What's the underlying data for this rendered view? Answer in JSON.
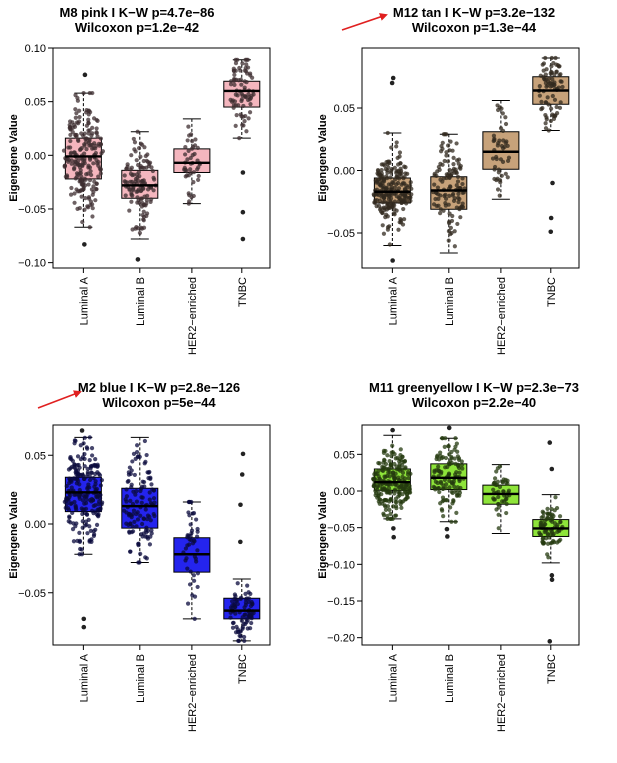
{
  "chart_data": [
    {
      "type": "box",
      "title": "M8 pink  I  K−W p=4.7e−86",
      "subtitle": "Wilcoxon p=1.2e−42",
      "ylabel": "Eigengene Value",
      "xlabel": "",
      "ylim": [
        -0.105,
        0.1
      ],
      "yticks": [
        "0.10",
        "0.05",
        "0.00",
        "−0.05",
        "−0.10"
      ],
      "ytick_values": [
        0.1,
        0.05,
        0.0,
        -0.05,
        -0.1
      ],
      "color": "#f4b6be",
      "annotated": false,
      "categories": [
        "Luminal A",
        "Luminal B",
        "HER2−enriched",
        "TNBC"
      ],
      "groups": [
        {
          "q1": -0.022,
          "median": -0.001,
          "q3": 0.016,
          "whisker_low": -0.067,
          "whisker_high": 0.058,
          "n": 220,
          "outliers": [
            0.075,
            -0.083
          ]
        },
        {
          "q1": -0.04,
          "median": -0.028,
          "q3": -0.014,
          "whisker_low": -0.078,
          "whisker_high": 0.022,
          "n": 120,
          "outliers": [
            -0.097
          ]
        },
        {
          "q1": -0.016,
          "median": -0.007,
          "q3": 0.006,
          "whisker_low": -0.045,
          "whisker_high": 0.034,
          "n": 45,
          "outliers": []
        },
        {
          "q1": 0.045,
          "median": 0.06,
          "q3": 0.069,
          "whisker_low": 0.016,
          "whisker_high": 0.089,
          "n": 80,
          "outliers": [
            -0.016,
            -0.053,
            -0.078
          ]
        }
      ]
    },
    {
      "type": "box",
      "title": "M12 tan  I  K−W p=3.2e−132",
      "subtitle": "Wilcoxon p=1.3e−44",
      "ylabel": "Eigengene Value",
      "xlabel": "",
      "ylim": [
        -0.078,
        0.098
      ],
      "yticks": [
        "0.05",
        "0.00",
        "−0.05"
      ],
      "ytick_values": [
        0.05,
        0.0,
        -0.05
      ],
      "color": "#c7a27a",
      "annotated": true,
      "categories": [
        "Luminal A",
        "Luminal B",
        "HER2−enriched",
        "TNBC"
      ],
      "groups": [
        {
          "q1": -0.026,
          "median": -0.017,
          "q3": -0.006,
          "whisker_low": -0.06,
          "whisker_high": 0.03,
          "n": 220,
          "outliers": [
            0.074,
            0.07,
            -0.072
          ]
        },
        {
          "q1": -0.031,
          "median": -0.016,
          "q3": -0.005,
          "whisker_low": -0.066,
          "whisker_high": 0.029,
          "n": 120,
          "outliers": []
        },
        {
          "q1": 0.001,
          "median": 0.015,
          "q3": 0.031,
          "whisker_low": -0.023,
          "whisker_high": 0.056,
          "n": 45,
          "outliers": []
        },
        {
          "q1": 0.053,
          "median": 0.064,
          "q3": 0.075,
          "whisker_low": 0.032,
          "whisker_high": 0.09,
          "n": 80,
          "outliers": [
            -0.01,
            -0.038,
            -0.049
          ]
        }
      ]
    },
    {
      "type": "box",
      "title": "M2 blue  I  K−W p=2.8e−126",
      "subtitle": "Wilcoxon p=5e−44",
      "ylabel": "Eigengene Value",
      "xlabel": "",
      "ylim": [
        -0.088,
        0.072
      ],
      "yticks": [
        "0.05",
        "0.00",
        "−0.05"
      ],
      "ytick_values": [
        0.05,
        0.0,
        -0.05
      ],
      "color": "#2424ee",
      "annotated": true,
      "categories": [
        "Luminal A",
        "Luminal B",
        "HER2−enriched",
        "TNBC"
      ],
      "groups": [
        {
          "q1": 0.009,
          "median": 0.023,
          "q3": 0.034,
          "whisker_low": -0.022,
          "whisker_high": 0.063,
          "n": 220,
          "outliers": [
            0.068,
            -0.069,
            -0.075
          ]
        },
        {
          "q1": -0.003,
          "median": 0.013,
          "q3": 0.026,
          "whisker_low": -0.028,
          "whisker_high": 0.063,
          "n": 120,
          "outliers": []
        },
        {
          "q1": -0.035,
          "median": -0.022,
          "q3": -0.01,
          "whisker_low": -0.069,
          "whisker_high": 0.016,
          "n": 45,
          "outliers": []
        },
        {
          "q1": -0.069,
          "median": -0.063,
          "q3": -0.054,
          "whisker_low": -0.085,
          "whisker_high": -0.04,
          "n": 80,
          "outliers": [
            0.051,
            0.036,
            0.014,
            -0.013
          ]
        }
      ]
    },
    {
      "type": "box",
      "title": "M11 greenyellow  I  K−W p=2.3e−73",
      "subtitle": "Wilcoxon p=2.2e−40",
      "ylabel": "Eigengene Value",
      "xlabel": "",
      "ylim": [
        -0.21,
        0.09
      ],
      "yticks": [
        "0.05",
        "0.00",
        "−0.05",
        "−0.10",
        "−0.15",
        "−0.20"
      ],
      "ytick_values": [
        0.05,
        0.0,
        -0.05,
        -0.1,
        -0.15,
        -0.2
      ],
      "color": "#8ee43a",
      "annotated": false,
      "categories": [
        "Luminal A",
        "Luminal B",
        "HER2−enriched",
        "TNBC"
      ],
      "groups": [
        {
          "q1": 0.001,
          "median": 0.012,
          "q3": 0.03,
          "whisker_low": -0.038,
          "whisker_high": 0.076,
          "n": 220,
          "outliers": [
            0.083,
            -0.051,
            -0.063
          ]
        },
        {
          "q1": 0.002,
          "median": 0.018,
          "q3": 0.037,
          "whisker_low": -0.042,
          "whisker_high": 0.072,
          "n": 120,
          "outliers": [
            0.086,
            -0.052,
            -0.062
          ]
        },
        {
          "q1": -0.018,
          "median": -0.004,
          "q3": 0.008,
          "whisker_low": -0.058,
          "whisker_high": 0.036,
          "n": 45,
          "outliers": []
        },
        {
          "q1": -0.062,
          "median": -0.051,
          "q3": -0.039,
          "whisker_low": -0.098,
          "whisker_high": -0.005,
          "n": 80,
          "outliers": [
            0.066,
            0.03,
            -0.115,
            -0.121,
            -0.205
          ]
        }
      ]
    }
  ]
}
